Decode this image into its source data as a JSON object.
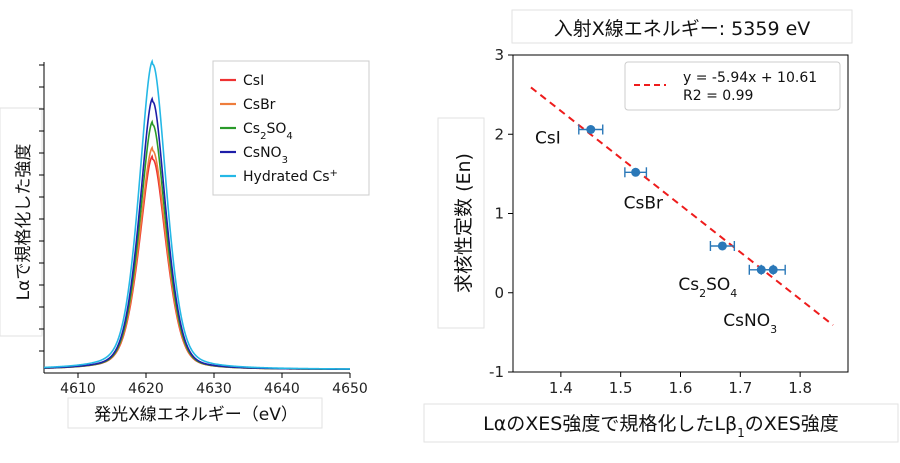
{
  "chart_data": [
    {
      "type": "line",
      "title": "",
      "xlabel": "発光X線エネルギー（eV）",
      "ylabel": "Lαで規格化した強度",
      "xlim": [
        4605,
        4650
      ],
      "xticks": [
        4610,
        4620,
        4630,
        4640,
        4650
      ],
      "ylim": [
        0,
        1.08
      ],
      "legend_position": "top-right",
      "peak_center": 4621,
      "series": [
        {
          "name": "CsI",
          "label_html": "CsI",
          "color": "#ee3232",
          "peak": 0.73,
          "width": 1.9
        },
        {
          "name": "CsBr",
          "label_html": "CsBr",
          "color": "#ee7d3c",
          "peak": 0.76,
          "width": 1.9
        },
        {
          "name": "Cs2SO4",
          "label_html": "Cs<tspan baseline-shift='sub' font-size='10'>2</tspan>SO<tspan baseline-shift='sub' font-size='10'>4</tspan>",
          "color": "#2a9a2a",
          "peak": 0.85,
          "width": 1.8
        },
        {
          "name": "CsNO3",
          "label_html": "CsNO<tspan baseline-shift='sub' font-size='10'>3</tspan>",
          "color": "#1e1ea8",
          "peak": 0.93,
          "width": 1.8
        },
        {
          "name": "Hydrated Cs+",
          "label_html": "Hydrated Cs<tspan baseline-shift='super' font-size='10'>+</tspan>",
          "color": "#25b8e6",
          "peak": 1.06,
          "width": 2.0
        }
      ]
    },
    {
      "type": "scatter",
      "title": "入射X線エネルギー: 5359 eV",
      "xlabel": "LαのXES強度で規格化したLβ1のXES強度",
      "ylabel": "求核性定数 (En)",
      "xlim": [
        1.32,
        1.88
      ],
      "ylim": [
        -1,
        3
      ],
      "xticks": [
        1.4,
        1.5,
        1.6,
        1.7,
        1.8
      ],
      "yticks": [
        -1,
        0,
        1,
        2,
        3
      ],
      "points": [
        {
          "label": "CsI",
          "label_html": "CsI",
          "x": 1.45,
          "y": 2.06,
          "xerr": 0.02
        },
        {
          "label": "CsBr",
          "label_html": "CsBr",
          "x": 1.525,
          "y": 1.52,
          "xerr": 0.018
        },
        {
          "label": "Cs2SO4",
          "label_html": "Cs<tspan baseline-shift='sub' font-size='11'>2</tspan>SO<tspan baseline-shift='sub' font-size='11'>4</tspan>",
          "x": 1.67,
          "y": 0.59,
          "xerr": 0.02
        },
        {
          "label": "CsNO3",
          "label_html": "CsNO<tspan baseline-shift='sub' font-size='11'>3</tspan>",
          "x": 1.735,
          "y": 0.29,
          "xerr": 0.02
        },
        {
          "label": "",
          "label_html": "",
          "x": 1.755,
          "y": 0.29,
          "xerr": 0.02
        }
      ],
      "fit": {
        "slope": -5.94,
        "intercept": 10.61,
        "x_range": [
          1.35,
          1.855
        ],
        "equation": "y = -5.94x + 10.61",
        "r2": "R2 = 0.99",
        "color": "#ee1c1c"
      },
      "marker_color": "#2a78b8",
      "legend_position": "top-right"
    }
  ]
}
